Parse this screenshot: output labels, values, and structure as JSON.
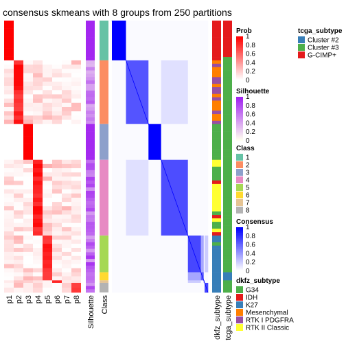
{
  "chart_data": {
    "type": "heatmap",
    "title": "consensus skmeans with 8 groups from 250 partitions",
    "columns": {
      "prob": [
        "p1",
        "p2",
        "p3",
        "p4",
        "p5",
        "p6",
        "p7",
        "p8"
      ],
      "silhouette": "Silhouette",
      "class": "Class",
      "dkfz": "dkfz_subtype",
      "tcga": "tcga_subtype"
    },
    "groups": [
      {
        "class": 1,
        "share": 0.128,
        "silhouette": 0.97
      },
      {
        "class": 2,
        "share": 0.205,
        "silhouette": 0.55
      },
      {
        "class": 3,
        "share": 0.115,
        "silhouette": 0.96
      },
      {
        "class": 4,
        "share": 0.244,
        "silhouette": 0.62
      },
      {
        "class": 5,
        "share": 0.118,
        "silhouette": 0.68
      },
      {
        "class": 6,
        "share": 0.026,
        "silhouette": 0.45
      },
      {
        "class": 7,
        "share": 0.008,
        "silhouette": 0.4
      },
      {
        "class": 8,
        "share": 0.031,
        "silhouette": 0.7
      }
    ],
    "legends": {
      "prob": {
        "title": "Prob",
        "ticks": [
          "1",
          "0.8",
          "0.6",
          "0.4",
          "0.2",
          "0"
        ]
      },
      "silhouette": {
        "title": "Silhouette",
        "ticks": [
          "1",
          "0.8",
          "0.6",
          "0.4",
          "0.2",
          "0"
        ]
      },
      "class": {
        "title": "Class",
        "items": [
          {
            "label": "1",
            "color": "#66C2A5"
          },
          {
            "label": "2",
            "color": "#FC8D62"
          },
          {
            "label": "3",
            "color": "#8DA0CB"
          },
          {
            "label": "4",
            "color": "#E78AC3"
          },
          {
            "label": "5",
            "color": "#A6D854"
          },
          {
            "label": "6",
            "color": "#FFD92F"
          },
          {
            "label": "7",
            "color": "#E5C494"
          },
          {
            "label": "8",
            "color": "#B3B3B3"
          }
        ]
      },
      "consensus": {
        "title": "Consensus",
        "ticks": [
          "1",
          "0.8",
          "0.6",
          "0.4",
          "0.2",
          "0"
        ]
      },
      "dkfz_subtype": {
        "title": "dkfz_subtype",
        "items": [
          {
            "label": "G34",
            "color": "#4DAF4A"
          },
          {
            "label": "IDH",
            "color": "#E41A1C"
          },
          {
            "label": "K27",
            "color": "#377EB8"
          },
          {
            "label": "Mesenchymal",
            "color": "#FF7F00"
          },
          {
            "label": "RTK I PDGFRA",
            "color": "#984EA3"
          },
          {
            "label": "RTK II Classic",
            "color": "#FFFF33"
          }
        ]
      },
      "tcga_subtype": {
        "title": "tcga_subtype",
        "items": [
          {
            "label": "Cluster #2",
            "color": "#377EB8"
          },
          {
            "label": "Cluster #3",
            "color": "#4DAF4A"
          },
          {
            "label": "G-CIMP+",
            "color": "#E41A1C"
          }
        ]
      }
    }
  }
}
